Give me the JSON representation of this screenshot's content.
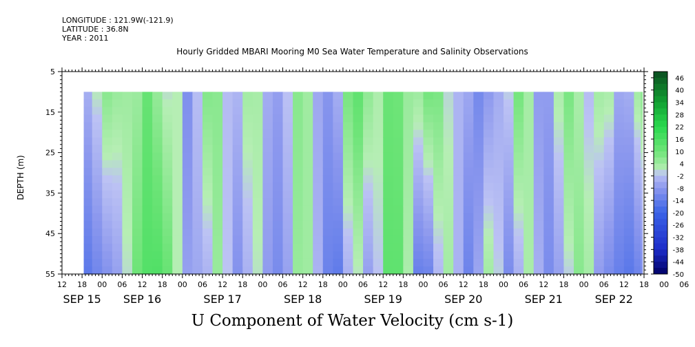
{
  "header": {
    "longitude": "LONGITUDE : 121.9W(-121.9)",
    "latitude": "LATITUDE : 36.8N",
    "year": "YEAR : 2011"
  },
  "title": "Hourly Gridded MBARI Mooring M0 Sea Water Temperature and Salinity Observations",
  "bottom_title": "U Component of Water Velocity (cm s-1)",
  "colors": {
    "negative_extreme": "#000066",
    "negative_mid": "#3a63e6",
    "near_zero_neg": "#b9c1f2",
    "near_zero_pos": "#b6eeb4",
    "positive_mid": "#2bd94f",
    "positive_extreme": "#0b4d20",
    "background": "#ffffff"
  },
  "chart_data": {
    "type": "heatmap",
    "ylabel": "DEPTH (m)",
    "xlabel": "",
    "y_ticks": [
      5,
      15,
      25,
      35,
      45,
      55
    ],
    "y_range": [
      5,
      55
    ],
    "y_reversed": true,
    "data_depth_range": [
      10,
      55
    ],
    "x_range_hours": [
      0,
      174
    ],
    "x_start": "2011-09-15 12:00",
    "data_x_start_hour": 6.5,
    "hour_tick_labels": [
      "12",
      "18",
      "00",
      "06",
      "12",
      "18",
      "00",
      "06",
      "12",
      "18",
      "00",
      "06",
      "12",
      "18",
      "00",
      "06",
      "12",
      "18",
      "00",
      "06",
      "12",
      "18",
      "00",
      "06",
      "12",
      "18",
      "00",
      "06",
      "12",
      "18",
      "00",
      "06",
      "12"
    ],
    "day_labels": [
      "SEP 15",
      "SEP 16",
      "SEP 17",
      "SEP 18",
      "SEP 19",
      "SEP 20",
      "SEP 21",
      "SEP 22"
    ],
    "colorbar": {
      "labels": [
        "46",
        "40",
        "34",
        "28",
        "22",
        "16",
        "10",
        "4",
        "-2",
        "-8",
        "-14",
        "-20",
        "-26",
        "-32",
        "-38",
        "-44",
        "-50"
      ],
      "min": -50,
      "max": 49
    },
    "grid": false,
    "columns": [
      {
        "t": 6.5,
        "top": -5,
        "bottom": -16
      },
      {
        "t": 9,
        "top": -3,
        "bottom": -13
      },
      {
        "t": 12,
        "top": 8,
        "bottom": -10
      },
      {
        "t": 15,
        "top": 4,
        "bottom": -8
      },
      {
        "t": 18,
        "top": 6,
        "bottom": -4
      },
      {
        "t": 21,
        "top": 0,
        "bottom": 8
      },
      {
        "t": 24,
        "top": 12,
        "bottom": 14
      },
      {
        "t": 27,
        "top": 10,
        "bottom": 16
      },
      {
        "t": 30,
        "top": -4,
        "bottom": 14
      },
      {
        "t": 33,
        "top": 8,
        "bottom": 6
      },
      {
        "t": 36,
        "top": -12,
        "bottom": -8
      },
      {
        "t": 39,
        "top": -6,
        "bottom": -4
      },
      {
        "t": 42,
        "top": 6,
        "bottom": -8
      },
      {
        "t": 45,
        "top": 10,
        "bottom": 5
      },
      {
        "t": 48,
        "top": 0,
        "bottom": 4
      },
      {
        "t": 51,
        "top": -6,
        "bottom": -10
      },
      {
        "t": 54,
        "top": 2,
        "bottom": -8
      },
      {
        "t": 57,
        "top": 6,
        "bottom": 4
      },
      {
        "t": 60,
        "top": -3,
        "bottom": -6
      },
      {
        "t": 63,
        "top": -8,
        "bottom": -10
      },
      {
        "t": 66,
        "top": -5,
        "bottom": -12
      },
      {
        "t": 69,
        "top": 6,
        "bottom": 4
      },
      {
        "t": 72,
        "top": 8,
        "bottom": 6
      },
      {
        "t": 75,
        "top": -4,
        "bottom": 0
      },
      {
        "t": 78,
        "top": -8,
        "bottom": -10
      },
      {
        "t": 81,
        "top": -10,
        "bottom": -18
      },
      {
        "t": 84,
        "top": 6,
        "bottom": -8
      },
      {
        "t": 87,
        "top": 14,
        "bottom": 4
      },
      {
        "t": 90,
        "top": 10,
        "bottom": -6
      },
      {
        "t": 93,
        "top": -2,
        "bottom": -8
      },
      {
        "t": 96,
        "top": 10,
        "bottom": 12
      },
      {
        "t": 99,
        "top": 12,
        "bottom": 14
      },
      {
        "t": 102,
        "top": 6,
        "bottom": 10
      },
      {
        "t": 105,
        "top": 2,
        "bottom": -12
      },
      {
        "t": 108,
        "top": 8,
        "bottom": -16
      },
      {
        "t": 111,
        "top": 12,
        "bottom": -6
      },
      {
        "t": 114,
        "top": 2,
        "bottom": 4
      },
      {
        "t": 117,
        "top": -4,
        "bottom": 2
      },
      {
        "t": 120,
        "top": -2,
        "bottom": -14
      },
      {
        "t": 123,
        "top": -12,
        "bottom": -10
      },
      {
        "t": 126,
        "top": -10,
        "bottom": 2
      },
      {
        "t": 129,
        "top": -4,
        "bottom": 6
      },
      {
        "t": 132,
        "top": -6,
        "bottom": -12
      },
      {
        "t": 135,
        "top": 10,
        "bottom": -8
      },
      {
        "t": 138,
        "top": 8,
        "bottom": 4
      },
      {
        "t": 141,
        "top": -6,
        "bottom": 0
      },
      {
        "t": 144,
        "top": -10,
        "bottom": -12
      },
      {
        "t": 147,
        "top": -2,
        "bottom": -8
      },
      {
        "t": 150,
        "top": 10,
        "bottom": -4
      },
      {
        "t": 153,
        "top": 6,
        "bottom": 6
      },
      {
        "t": 156,
        "top": -4,
        "bottom": 8
      },
      {
        "t": 159,
        "top": 2,
        "bottom": -6
      },
      {
        "t": 162,
        "top": 6,
        "bottom": -10
      },
      {
        "t": 165,
        "top": -4,
        "bottom": -12
      },
      {
        "t": 168,
        "top": -8,
        "bottom": -16
      },
      {
        "t": 171,
        "top": 2,
        "bottom": -14
      },
      {
        "t": 173,
        "top": 6,
        "bottom": -10
      }
    ]
  }
}
